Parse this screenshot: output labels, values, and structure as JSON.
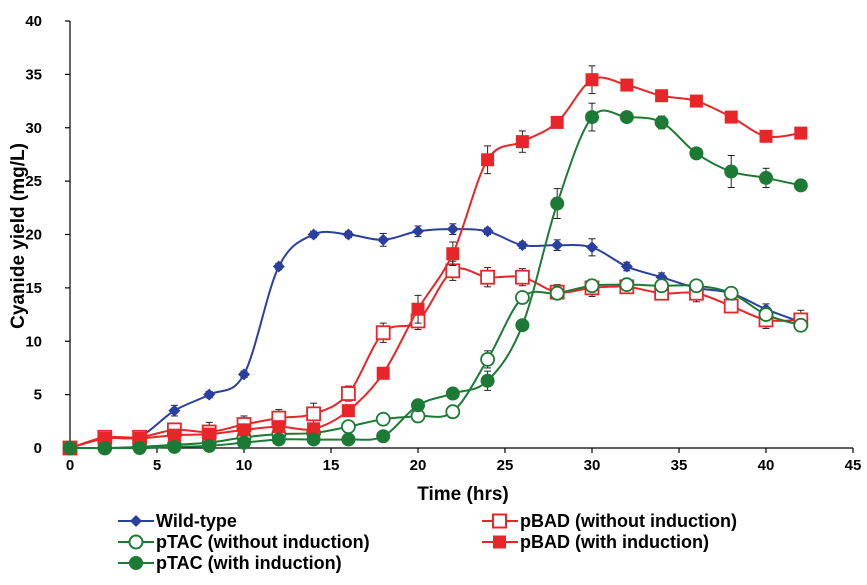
{
  "chart_data": {
    "type": "line",
    "title": "",
    "xlabel": "Time (hrs)",
    "ylabel": "Cyanide yield (mg/L)",
    "xlim": [
      0,
      45
    ],
    "ylim": [
      0,
      40
    ],
    "xticks": [
      0,
      5,
      10,
      15,
      20,
      25,
      30,
      35,
      40,
      45
    ],
    "yticks": [
      0,
      5,
      10,
      15,
      20,
      25,
      30,
      35,
      40
    ],
    "grid": false,
    "legend_position": "bottom",
    "series": [
      {
        "name": "Wild-type",
        "color": "#2B3FA0",
        "marker": "diamond-filled",
        "x": [
          0,
          2,
          4,
          6,
          8,
          10,
          12,
          14,
          16,
          18,
          20,
          22,
          24,
          26,
          28,
          30,
          32,
          34,
          36,
          38,
          40,
          42
        ],
        "y": [
          0,
          0.9,
          1.1,
          3.5,
          5.0,
          6.9,
          17.0,
          20.0,
          20.0,
          19.5,
          20.3,
          20.5,
          20.3,
          19.0,
          19.0,
          18.8,
          17.0,
          16.0,
          15.0,
          14.5,
          13.0,
          11.8
        ],
        "err": [
          0.3,
          0.4,
          0.4,
          0.5,
          0.3,
          0.3,
          0.3,
          0.3,
          0.3,
          0.6,
          0.5,
          0.5,
          0.3,
          0.3,
          0.5,
          0.8,
          0.4,
          0.4,
          0.5,
          0.5,
          0.5,
          0.5
        ]
      },
      {
        "name": "pBAD (without induction)",
        "color": "#E8262A",
        "marker": "square-open",
        "x": [
          0,
          2,
          4,
          6,
          8,
          10,
          12,
          14,
          16,
          18,
          20,
          22,
          24,
          26,
          28,
          30,
          32,
          34,
          36,
          38,
          40,
          42
        ],
        "y": [
          0,
          1.0,
          1.0,
          1.7,
          1.5,
          2.2,
          2.8,
          3.2,
          5.1,
          10.8,
          11.9,
          16.6,
          16.0,
          16.0,
          14.6,
          15.0,
          15.1,
          14.5,
          14.5,
          13.3,
          12.0,
          12.0
        ],
        "err": [
          0.3,
          0.4,
          0.6,
          0.5,
          0.9,
          0.8,
          0.8,
          1.0,
          0.7,
          0.9,
          0.8,
          0.9,
          0.9,
          0.8,
          0.7,
          0.8,
          0.6,
          0.6,
          0.8,
          0.6,
          0.8,
          0.9
        ]
      },
      {
        "name": "pTAC (without induction)",
        "color": "#1C7A35",
        "marker": "circle-open",
        "x": [
          0,
          2,
          4,
          6,
          8,
          10,
          12,
          14,
          16,
          18,
          20,
          22,
          24,
          26,
          28,
          30,
          32,
          34,
          36,
          38,
          40,
          42
        ],
        "y": [
          0,
          0,
          0.1,
          0.3,
          0.5,
          1.0,
          1.3,
          1.4,
          2.0,
          2.7,
          3.0,
          3.4,
          8.3,
          14.1,
          14.5,
          15.2,
          15.3,
          15.2,
          15.2,
          14.5,
          12.5,
          11.5
        ],
        "err": [
          0.2,
          0.2,
          0.2,
          0.2,
          0.2,
          0.3,
          0.3,
          0.3,
          0.3,
          0.3,
          0.3,
          0.3,
          0.8,
          0.5,
          0.5,
          0.4,
          0.4,
          0.4,
          0.5,
          0.5,
          0.5,
          0.5
        ]
      },
      {
        "name": "pBAD (with induction)",
        "color": "#E8262A",
        "marker": "square-filled",
        "x": [
          0,
          2,
          4,
          6,
          8,
          10,
          12,
          14,
          16,
          18,
          20,
          22,
          24,
          26,
          28,
          30,
          32,
          34,
          36,
          38,
          40,
          42
        ],
        "y": [
          0,
          0.9,
          0.9,
          1.2,
          1.3,
          1.7,
          2.0,
          1.8,
          3.5,
          7.0,
          13.0,
          18.2,
          27.0,
          28.7,
          30.5,
          34.5,
          34.0,
          33.0,
          32.5,
          31.0,
          29.2,
          29.5
        ],
        "err": [
          0.3,
          0.4,
          0.3,
          0.3,
          0.3,
          0.3,
          0.3,
          0.3,
          0.4,
          0.3,
          1.3,
          1.1,
          1.3,
          1.0,
          0.4,
          1.3,
          0.4,
          0.4,
          0.3,
          0.3,
          0.4,
          0.3
        ]
      },
      {
        "name": "pTAC (with induction)",
        "color": "#1C7A35",
        "marker": "circle-filled",
        "x": [
          0,
          2,
          4,
          6,
          8,
          10,
          12,
          14,
          16,
          18,
          20,
          22,
          24,
          26,
          28,
          30,
          32,
          34,
          36,
          38,
          40,
          42
        ],
        "y": [
          0,
          0,
          0,
          0.1,
          0.2,
          0.5,
          0.8,
          0.8,
          0.8,
          1.1,
          4.0,
          5.1,
          6.3,
          11.5,
          22.9,
          31.0,
          31.0,
          30.5,
          27.6,
          25.9,
          25.3,
          24.6
        ],
        "err": [
          0.2,
          0.2,
          0.2,
          0.2,
          0.2,
          0.2,
          0.2,
          0.2,
          0.2,
          0.2,
          0.3,
          0.3,
          0.9,
          0.5,
          1.4,
          1.3,
          0.4,
          0.6,
          0.4,
          1.5,
          0.9,
          0.4
        ]
      }
    ]
  },
  "legend": {
    "items": [
      {
        "label": "Wild-type"
      },
      {
        "label": "pBAD (without induction)"
      },
      {
        "label": "pTAC (without induction)"
      },
      {
        "label": "pBAD (with induction)"
      },
      {
        "label": "pTAC (with induction)"
      }
    ]
  }
}
